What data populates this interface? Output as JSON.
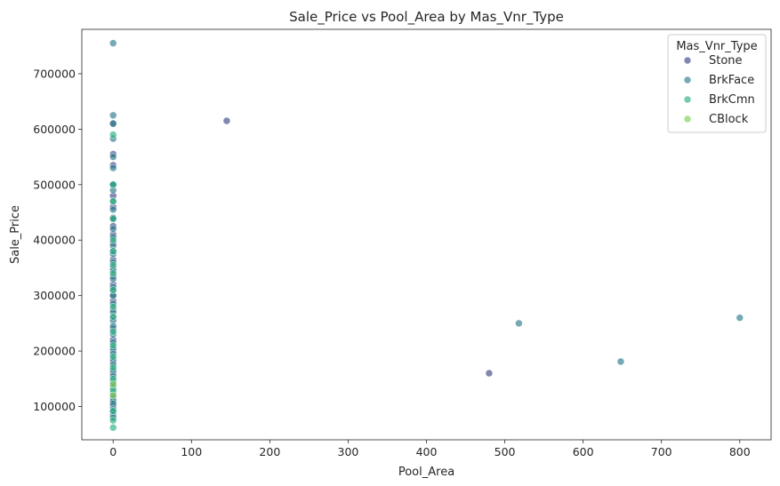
{
  "chart_data": {
    "type": "scatter",
    "title": "Sale_Price vs Pool_Area by Mas_Vnr_Type",
    "xlabel": "Pool_Area",
    "ylabel": "Sale_Price",
    "xlim": [
      -40,
      840
    ],
    "ylim": [
      40000,
      780000
    ],
    "xticks": [
      0,
      100,
      200,
      300,
      400,
      500,
      600,
      700,
      800
    ],
    "yticks": [
      100000,
      200000,
      300000,
      400000,
      500000,
      600000,
      700000
    ],
    "grid": false,
    "legend": {
      "title": "Mas_Vnr_Type",
      "placement": "top-right",
      "entries": [
        "Stone",
        "BrkFace",
        "BrkCmn",
        "CBlock"
      ]
    },
    "colors": {
      "Stone": "#3f4788",
      "BrkFace": "#2b7b8a",
      "BrkCmn": "#2bb07f",
      "CBlock": "#7ad151"
    },
    "marker_alpha": 0.65,
    "series": [
      {
        "name": "Stone",
        "x": [
          145,
          480,
          0,
          0,
          0,
          0,
          0,
          0,
          0,
          0,
          0,
          0,
          0,
          0,
          0,
          0,
          0,
          0,
          0,
          0,
          0,
          0,
          0,
          0,
          0,
          0,
          0,
          0,
          0,
          0
        ],
        "y": [
          615000,
          160000,
          610000,
          555000,
          535000,
          500000,
          480000,
          460000,
          440000,
          425000,
          410000,
          395000,
          380000,
          365000,
          350000,
          335000,
          320000,
          310000,
          300000,
          290000,
          275000,
          260000,
          240000,
          220000,
          200000,
          180000,
          160000,
          140000,
          120000,
          100000
        ]
      },
      {
        "name": "BrkFace",
        "x": [
          518,
          648,
          800,
          0,
          0,
          0,
          0,
          0,
          0,
          0,
          0,
          0,
          0,
          0,
          0,
          0,
          0,
          0,
          0,
          0,
          0,
          0,
          0,
          0,
          0,
          0,
          0,
          0,
          0,
          0,
          0,
          0,
          0,
          0,
          0,
          0,
          0,
          0,
          0,
          0,
          0,
          0,
          0,
          0,
          0
        ],
        "y": [
          250000,
          181000,
          260000,
          755000,
          625000,
          610000,
          583000,
          550000,
          530000,
          500000,
          490000,
          470000,
          455000,
          440000,
          420000,
          405000,
          390000,
          375000,
          360000,
          345000,
          330000,
          315000,
          300000,
          285000,
          270000,
          255000,
          245000,
          230000,
          215000,
          205000,
          195000,
          185000,
          175000,
          165000,
          155000,
          145000,
          135000,
          125000,
          115000,
          110000,
          105000,
          95000,
          90000,
          85000,
          80000
        ]
      },
      {
        "name": "BrkCmn",
        "x": [
          0,
          0,
          0,
          0,
          0,
          0,
          0,
          0,
          0,
          0,
          0,
          0,
          0,
          0,
          0,
          0,
          0,
          0,
          0,
          0
        ],
        "y": [
          590000,
          500000,
          470000,
          438000,
          400000,
          380000,
          355000,
          340000,
          310000,
          280000,
          262000,
          235000,
          210000,
          190000,
          170000,
          150000,
          130000,
          92000,
          75000,
          62000
        ]
      },
      {
        "name": "CBlock",
        "x": [
          0,
          0
        ],
        "y": [
          120000,
          140000
        ]
      }
    ]
  }
}
